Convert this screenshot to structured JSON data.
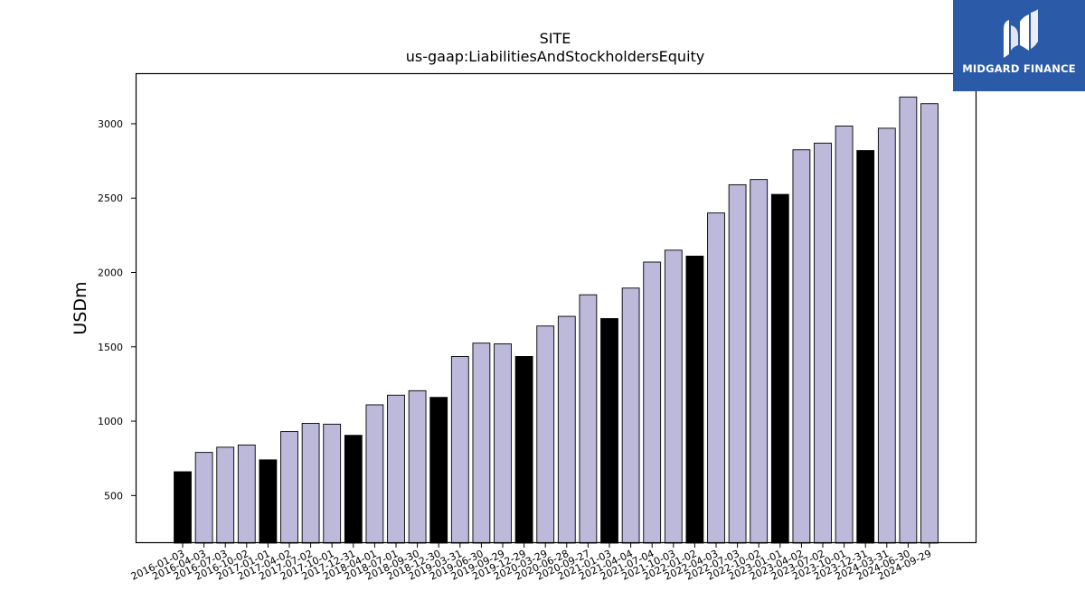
{
  "chart_data": {
    "type": "bar",
    "title": "SITE",
    "subtitle": "us-gaap:LiabilitiesAndStockholdersEquity",
    "xlabel": "",
    "ylabel": "USDm",
    "ylim": [
      180,
      3340
    ],
    "yticks": [
      500,
      1000,
      1500,
      2000,
      2500,
      3000
    ],
    "grid": false,
    "categories": [
      "2016-01-03",
      "2016-04-03",
      "2016-07-03",
      "2016-10-02",
      "2017-01-01",
      "2017-04-02",
      "2017-07-02",
      "2017-10-01",
      "2017-12-31",
      "2018-04-01",
      "2018-07-01",
      "2018-09-30",
      "2018-12-30",
      "2019-03-31",
      "2019-06-30",
      "2019-09-29",
      "2019-12-29",
      "2020-03-29",
      "2020-06-28",
      "2020-09-27",
      "2021-01-03",
      "2021-04-04",
      "2021-07-04",
      "2021-10-03",
      "2022-01-02",
      "2022-04-03",
      "2022-07-03",
      "2022-10-02",
      "2023-01-01",
      "2023-04-02",
      "2023-07-02",
      "2023-10-01",
      "2023-12-31",
      "2024-03-31",
      "2024-06-30",
      "2024-09-29"
    ],
    "values": [
      660,
      790,
      825,
      840,
      740,
      930,
      985,
      980,
      905,
      1110,
      1175,
      1205,
      1160,
      1435,
      1525,
      1520,
      1435,
      1640,
      1705,
      1850,
      1690,
      1895,
      2070,
      2150,
      2110,
      2400,
      2590,
      2625,
      2525,
      2825,
      2870,
      2985,
      2820,
      2970,
      3180,
      3135
    ],
    "highlight": [
      true,
      false,
      false,
      false,
      true,
      false,
      false,
      false,
      true,
      false,
      false,
      false,
      true,
      false,
      false,
      false,
      true,
      false,
      false,
      false,
      true,
      false,
      false,
      false,
      true,
      false,
      false,
      false,
      true,
      false,
      false,
      false,
      true,
      false,
      false,
      false
    ],
    "colors": {
      "bar": "#bcb9db",
      "highlight": "#000000",
      "edge": "#000000"
    }
  },
  "brand": {
    "name": "MIDGARD FINANCE",
    "color": "#2b5aa8"
  }
}
